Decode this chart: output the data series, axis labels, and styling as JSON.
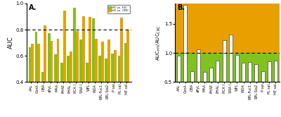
{
  "categories": [
    "AAL",
    "ConA",
    "DBA",
    "dPyL",
    "MAA",
    "PHAE",
    "PHAL",
    "RCA I",
    "SNA I",
    "WFL",
    "WGA",
    "RPL-Fuc1",
    "RPL-Sia2",
    "P sal",
    "PL sal",
    "HE sal"
  ],
  "hy_vs_ho": [
    0.665,
    0.785,
    0.475,
    0.775,
    0.61,
    0.545,
    0.6,
    0.965,
    0.725,
    0.545,
    0.885,
    0.6,
    0.58,
    0.615,
    0.6,
    0.7
  ],
  "ho_vs_crc": [
    0.695,
    0.695,
    0.835,
    0.715,
    0.73,
    0.945,
    0.635,
    0.79,
    0.905,
    0.895,
    0.73,
    0.71,
    0.725,
    0.645,
    0.89,
    0.8
  ],
  "ratio": [
    0.955,
    1.83,
    0.68,
    1.06,
    0.67,
    0.74,
    0.87,
    1.22,
    1.315,
    0.96,
    0.835,
    0.845,
    0.8,
    0.68,
    0.86,
    0.87
  ],
  "color_green": "#7fc31c",
  "color_orange": "#e8a000",
  "color_white": "#ffffff",
  "bg_orange": "#e8a000",
  "bg_green": "#7fc31c",
  "panel_a_ylim": [
    0.4,
    1.0
  ],
  "panel_b_ylim": [
    0.5,
    1.85
  ],
  "panel_a_hline": 0.8,
  "panel_b_hline": 1.0,
  "panel_b_bg_thresh": 1.0,
  "panel_a_ylabel": "AUC",
  "legend_hy": "HY vs. hO",
  "legend_ho": "hO vs. CRC",
  "panel_a_yticks": [
    0.4,
    0.6,
    0.8,
    1.0
  ],
  "panel_b_yticks": [
    0.5,
    1.0,
    1.5
  ]
}
